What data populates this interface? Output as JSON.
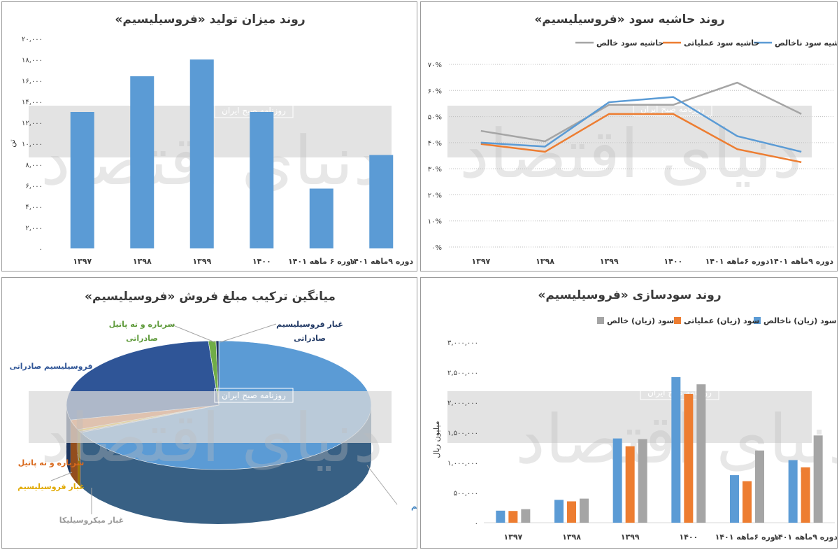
{
  "watermark": {
    "logo_text": "دنیای اقتصاد",
    "sub_text": "روزنامه صبح ایران"
  },
  "colors": {
    "blue": "#5b9bd5",
    "orange": "#ed7d31",
    "gray": "#a5a5a5",
    "band": "#d9d9d9",
    "green": "#70ad47",
    "yellow": "#ffc000",
    "darkblue": "#2f5597"
  },
  "chart_data": [
    {
      "id": "production",
      "type": "bar",
      "title": "روند میزان تولید «فروسیلیسیم»",
      "ylabel": "تن",
      "ylim": [
        0,
        20000
      ],
      "yticks": [
        "۰",
        "۲,۰۰۰",
        "۴,۰۰۰",
        "۶,۰۰۰",
        "۸,۰۰۰",
        "۱۰,۰۰۰",
        "۱۲,۰۰۰",
        "۱۴,۰۰۰",
        "۱۶,۰۰۰",
        "۱۸,۰۰۰",
        "۲۰,۰۰۰"
      ],
      "categories": [
        "۱۳۹۷",
        "۱۳۹۸",
        "۱۳۹۹",
        "۱۴۰۰",
        "دوره ۶ ماهه ۱۴۰۱",
        "دوره ۹ماهه ۱۴۰۱"
      ],
      "values": [
        13000,
        16400,
        18000,
        13000,
        5700,
        8900
      ]
    },
    {
      "id": "margins",
      "type": "line",
      "title": "روند حاشیه سود «فروسیلیسیم»",
      "ylim": [
        0,
        70
      ],
      "yticks": [
        "۰%",
        "۱۰%",
        "۲۰%",
        "۳۰%",
        "۴۰%",
        "۵۰%",
        "۶۰%",
        "۷۰%"
      ],
      "categories": [
        "۱۳۹۷",
        "۱۳۹۸",
        "۱۳۹۹",
        "۱۴۰۰",
        "دوره ۶ماهه ۱۴۰۱",
        "دوره ۹ماهه ۱۴۰۱"
      ],
      "series": [
        {
          "name": "حاشیه سود ناخالص",
          "color": "#5b9bd5",
          "values": [
            40,
            38.5,
            55.5,
            57.5,
            42.5,
            36.5
          ]
        },
        {
          "name": "حاشیه سود عملیاتی",
          "color": "#ed7d31",
          "values": [
            39.5,
            36.5,
            51,
            51,
            37.5,
            32.5
          ]
        },
        {
          "name": "حاشیه سود خالص",
          "color": "#a5a5a5",
          "values": [
            44.5,
            40.5,
            54.5,
            54.5,
            63,
            51
          ]
        }
      ],
      "legend": "top"
    },
    {
      "id": "sales_mix",
      "type": "pie",
      "title": "میانگین ترکیب مبلغ فروش «فروسیلیسیم»",
      "slices": [
        {
          "name": "فروسیلیسیم",
          "value": 68.0,
          "color": "#5b9bd5",
          "label_color": "#4a8ac4"
        },
        {
          "name": "غبار میکروسیلیکا",
          "value": 0.3,
          "color": "#a5a5a5",
          "label_color": "#9a9a9a"
        },
        {
          "name": "غبار فروسیلیسیم",
          "value": 0.5,
          "color": "#ffc000",
          "label_color": "#e0a800"
        },
        {
          "name": "سرباره و ته پاتیل",
          "value": 2.5,
          "color": "#ed7d31",
          "label_color": "#d96a1e"
        },
        {
          "name": "فروسیلیسیم صادراتی",
          "value": 27.6,
          "color": "#2f5597",
          "label_color": "#2f5597"
        },
        {
          "name": "سرباره و ته پاتیل صادراتی",
          "value": 0.8,
          "color": "#70ad47",
          "label_color": "#5e9a3a"
        },
        {
          "name": "غبار فروسیلیسیم صادراتی",
          "value": 0.3,
          "color": "#1f3864",
          "label_color": "#203864"
        }
      ]
    },
    {
      "id": "profit",
      "type": "bar",
      "title": "روند سودسازی «فروسیلیسیم»",
      "ylabel": "میلیون ریال",
      "ylim": [
        0,
        3000000
      ],
      "yticks": [
        "۰",
        "۵۰۰,۰۰۰",
        "۱,۰۰۰,۰۰۰",
        "۱,۵۰۰,۰۰۰",
        "۲,۰۰۰,۰۰۰",
        "۲,۵۰۰,۰۰۰",
        "۳,۰۰۰,۰۰۰"
      ],
      "categories": [
        "۱۳۹۷",
        "۱۳۹۸",
        "۱۳۹۹",
        "۱۴۰۰",
        "دوره ۶ماهه ۱۴۰۱",
        "دوره ۹ماهه ۱۴۰۱"
      ],
      "series": [
        {
          "name": "سود (زیان) ناخالص",
          "color": "#5b9bd5",
          "values": [
            200000,
            380000,
            1400000,
            2420000,
            790000,
            1040000
          ]
        },
        {
          "name": "سود (زیان) عملیاتی",
          "color": "#ed7d31",
          "values": [
            195000,
            355000,
            1270000,
            2140000,
            690000,
            920000
          ]
        },
        {
          "name": "سود (زیان) خالص",
          "color": "#a5a5a5",
          "values": [
            225000,
            400000,
            1390000,
            2300000,
            1200000,
            1450000
          ]
        }
      ],
      "legend": "top"
    }
  ]
}
